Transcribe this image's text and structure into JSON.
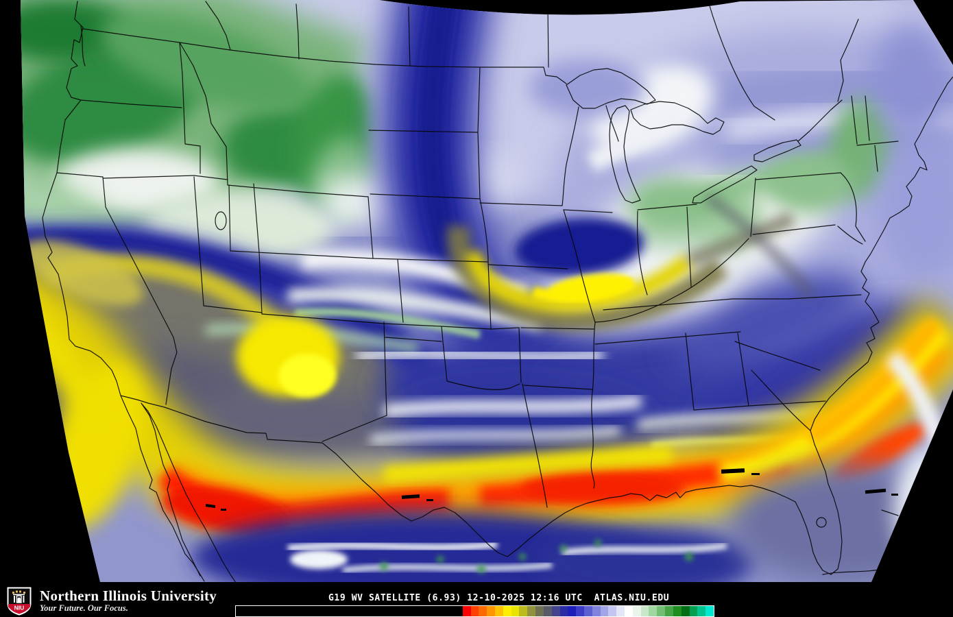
{
  "footer": {
    "logo": {
      "acronym": "NIU",
      "red": "#c8102e"
    },
    "brand": "Northern Illinois University",
    "tagline": "Your Future. Our Focus.",
    "caption": "G19 WV SATELLITE (6.93) 12-10-2025 12:16 UTC  ATLAS.NIU.EDU",
    "caption_parts": {
      "satellite": "G19",
      "product": "WV SATELLITE (6.93)",
      "date": "12-10-2025",
      "time": "12:16 UTC",
      "site": "ATLAS.NIU.EDU"
    }
  },
  "colorbar": {
    "label": "water-vapor-enhancement-scale",
    "steps": [
      "#000000",
      "#fa0000",
      "#ff4000",
      "#ff6a00",
      "#ff9600",
      "#ffc300",
      "#ffee00",
      "#e8e300",
      "#bdbb1c",
      "#93923c",
      "#6f6f52",
      "#585a68",
      "#42438c",
      "#2b2ca4",
      "#1c1eb8",
      "#3a3cc6",
      "#5c5ed2",
      "#8082dc",
      "#a2a4e8",
      "#c4c5f0",
      "#e4e5f7",
      "#ffffff",
      "#e9f5e9",
      "#c9e8c9",
      "#a0d6a0",
      "#72be72",
      "#46a446",
      "#1e8c1e",
      "#006e14",
      "#00a050",
      "#00c490",
      "#00e8d0"
    ]
  }
}
